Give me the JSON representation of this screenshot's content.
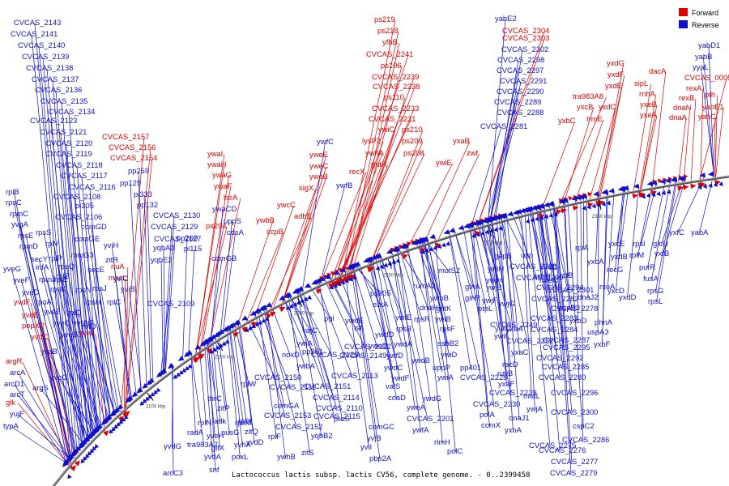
{
  "caption": "Lactococcus lactis subsp. lactis CV56, complete genome. - 0..2399458",
  "legend": {
    "forward": {
      "label": "Forward",
      "color": "#dd0000"
    },
    "reverse": {
      "label": "Reverse",
      "color": "#1010cc"
    }
  },
  "ticks": [
    "2100 kbp",
    "2150 kbp",
    "2200 kbp",
    "2250 kbp",
    "2300 kbp",
    "2350 kbp"
  ],
  "forward_labels": [
    "CVCAS_2157",
    "CVCAS_2156",
    "CVCAS_2154",
    "ywaI",
    "ywaH",
    "ywaG",
    "ywaF",
    "htrA",
    "ps204",
    "ywbB",
    "ccpB",
    "ywcC",
    "adhE",
    "yweE",
    "yweC",
    "yweB",
    "sigX",
    "recX",
    "ps219",
    "ps218",
    "yfbB",
    "CVCAS_2241",
    "ps106",
    "CVCAS_2239",
    "CVCAS_2238",
    "ps110",
    "CVCAS_2233",
    "CVCAS_2231",
    "ywiC",
    "ps210",
    "lysP2",
    "ps209",
    "ywhA",
    "ps208",
    "gntR",
    "ywiE",
    "yxaB",
    "zwf",
    "CVCAS_2304",
    "CVCAS_2303",
    "yxdG",
    "yxdF",
    "tra983A8",
    "yxdE",
    "yxcB",
    "yxbC",
    "trmE",
    "yxdC",
    "sipL",
    "dacA",
    "rnhA",
    "yxeB",
    "yxeA",
    "rexA",
    "rexB",
    "dnaN",
    "dnaA",
    "pth",
    "CVCAS_0005",
    "yabE1",
    "yabC",
    "rluA",
    "mscL",
    "yvdF",
    "yvdE",
    "pepXP",
    "yvdC",
    "yveL",
    "argR",
    "glk"
  ],
  "reverse_labels": [
    "CVCAS_2143",
    "CVCAS_2141",
    "CVCAS_2140",
    "CVCAS_2139",
    "CVCAS_2138",
    "CVCAS_2137",
    "CVCAS_2136",
    "CVCAS_2135",
    "CVCAS_2134",
    "CVCAS_2123",
    "CVCAS_2121",
    "CVCAS_2120",
    "CVCAS_2119",
    "CVCAS_2118",
    "CVCAS_2117",
    "CVCAS_2116",
    "CVCAS_2108",
    "pi305",
    "CVCAS_2106",
    "comGD",
    "comGE",
    "yviH",
    "zitR",
    "secE",
    "yviC",
    "yviB",
    "pp259",
    "pp129",
    "pi333",
    "pp132",
    "CVCAS_2130",
    "CVCAS_2129",
    "CVCAS_2127",
    "yqbA3",
    "yqbE2",
    "pp260",
    "pi115",
    "comGB",
    "CVCAS_2109",
    "ywaCD",
    "uppS",
    "cdsA",
    "ywfC",
    "ywfB",
    "rplB",
    "rpsC",
    "rpmC",
    "yvgA",
    "rpsS",
    "rpsE",
    "rplV",
    "rpmD",
    "rplP",
    "rpmG3",
    "secY",
    "infA",
    "rpsQ",
    "rplE",
    "rpmJ",
    "rplE",
    "rpsK",
    "rpsN",
    "rpsJ",
    "yveG",
    "yveF",
    "yveD",
    "rpoA",
    "rpsH",
    "rplC",
    "yveE",
    "rplQ",
    "rplF",
    "yveC",
    "yvfA",
    "rplO",
    "yveB",
    "yvdB",
    "arcA",
    "arcD1",
    "arcT",
    "argS",
    "yvcC",
    "yujF",
    "typA",
    "yabE2",
    "CVCAS_2302",
    "CVCAS_2298",
    "CVCAS_2297",
    "CVCAS_2291",
    "CVCAS_2290",
    "CVCAS_2289",
    "CVCAS_2288",
    "CVCAS_2281",
    "yabD1",
    "yabB",
    "yyaL",
    "yxfC",
    "yabA",
    "rpsI",
    "glcU",
    "rplM",
    "yxfB",
    "purR",
    "fusA",
    "rpsG",
    "rpsL",
    "yxcE",
    "rpiA",
    "yxcA",
    "yxdB",
    "recG",
    "rcfB",
    "rsuA",
    "dnaJ2",
    "yxcD",
    "yxdD",
    "phnA",
    "yxbD",
    "uspA3",
    "yxbF",
    "gapB",
    "usp",
    "CVCAS_2293",
    "mreD",
    "CVCAS_2299",
    "asnH",
    "CVCAS_2294",
    "mreC",
    "CVCAS_2301",
    "CVCAS_2282",
    "cspB3",
    "CVCAS_2278",
    "CVCAS_2283",
    "CVCAS_2284",
    "CVCAS_2287",
    "CVCAS_2295",
    "CVCAS_2292",
    "CVCAS_2285",
    "CVCAS_2280",
    "CVCAS_2296",
    "CVCAS_2300",
    "cspC2",
    "CVCAS_2286",
    "CVCAS_2276",
    "CVCAS_2277",
    "CVCAS_2279",
    "ywiH",
    "ywjH",
    "ywjB",
    "ywjF",
    "glnA",
    "glnR",
    "ywjG",
    "ptpL",
    "CVCAS_2249",
    "ywiG",
    "yxaA",
    "ywiI",
    "CVCAS_2252",
    "yxaC",
    "racD",
    "ruvB",
    "yxaF",
    "mutL",
    "ywjA",
    "dnaJ1",
    "yxbA",
    "CVCAS_2275",
    "mutS2",
    "ps305",
    "rumA2",
    "ywhB",
    "dnaH",
    "gntK",
    "ywiB",
    "rpsR",
    "ssbB2",
    "rpsF",
    "uppP",
    "ywiA",
    "ywiD",
    "pp401",
    "CVCAS_2228",
    "CVCAS_2229",
    "CVCAS_2230",
    "polA",
    "comX",
    "pgi",
    "ywdE",
    "ezrA",
    "tsf",
    "ywfE",
    "ywdD",
    "rpsB",
    "yweD",
    "ywdA",
    "ywfD",
    "ywdB",
    "ywdC",
    "ywdF",
    "valS",
    "coaD",
    "ywdG",
    "yweA",
    "CVCAS_2201",
    "ywfA",
    "rlmH",
    "polC",
    "vajC",
    "ywjA",
    "pp261",
    "CVCAS_2126",
    "noxD",
    "ywbA",
    "CVCAS_2112",
    "CVCAS_2149",
    "CVCAS_2113",
    "CVCAS_2150",
    "CVCAS_2111",
    "CVCAS_2151",
    "CVCAS_2114",
    "comGA",
    "CVCAS_2110",
    "CVCAS_2153",
    "CVCAS_2115",
    "proS",
    "CVCAS_2152",
    "comGC",
    "yqbB2",
    "yvjB",
    "yviI",
    "ywhB",
    "zitS",
    "pbp2A",
    "rplW",
    "thrC",
    "zitP",
    "adk",
    "rplX",
    "rpsM",
    "rplN",
    "nusG",
    "yveH",
    "zitQ",
    "radA",
    "yvhA",
    "rplF",
    "tra983A7",
    "yvdD",
    "gltX",
    "yvdA",
    "poxL",
    "yvdG",
    "snf",
    "arcC3"
  ]
}
